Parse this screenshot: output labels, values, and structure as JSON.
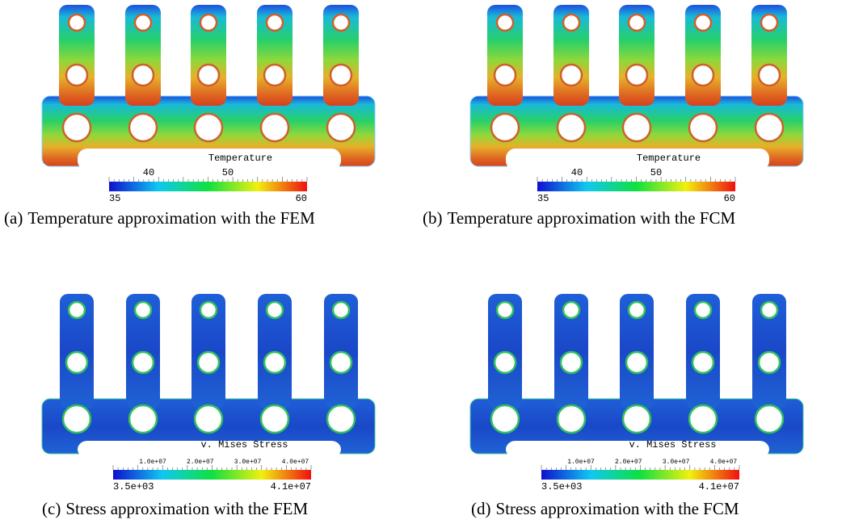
{
  "panels": [
    {
      "label": "(a)",
      "caption": "Temperature approximation with the FEM",
      "kind": "temperature",
      "colorbar": {
        "title": "Temperature",
        "ticks": [
          "40",
          "50"
        ],
        "min": "35",
        "max": "60"
      }
    },
    {
      "label": "(b)",
      "caption": "Temperature approximation with the FCM",
      "kind": "temperature",
      "colorbar": {
        "title": "Temperature",
        "ticks": [
          "40",
          "50"
        ],
        "min": "35",
        "max": "60"
      }
    },
    {
      "label": "(c)",
      "caption": "Stress approximation with the FEM",
      "kind": "stress",
      "colorbar": {
        "title": "v. Mises Stress",
        "ticks": [
          "1.0e+07",
          "2.0e+07",
          "3.0e+07",
          "4.0e+07"
        ],
        "min": "3.5e+03",
        "max": "4.1e+07"
      }
    },
    {
      "label": "(d)",
      "caption": "Stress approximation with the FCM",
      "kind": "stress",
      "colorbar": {
        "title": "v. Mises Stress",
        "ticks": [
          "1.0e+07",
          "2.0e+07",
          "3.0e+07",
          "4.0e+07"
        ],
        "min": "3.5e+03",
        "max": "4.1e+07"
      }
    }
  ]
}
